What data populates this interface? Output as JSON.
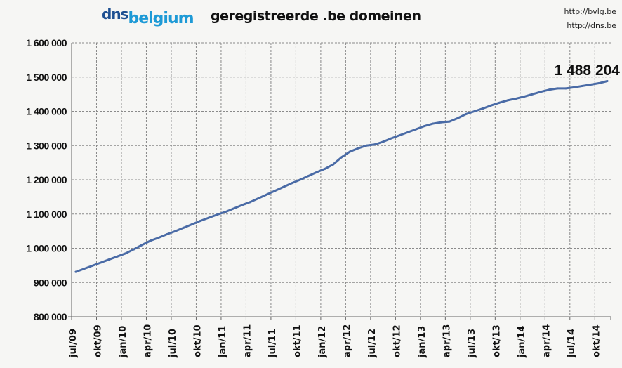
{
  "header": {
    "logo_dns": "dns",
    "logo_belgium": "belgium",
    "title": "geregistreerde .be domeinen",
    "url1": "http://bvlg.be",
    "url2": "http://dns.be"
  },
  "colors": {
    "line": "#4a6ba6",
    "grid": "#888888",
    "logo_dark": "#1d4f91",
    "logo_light": "#1e9ad6"
  },
  "chart_data": {
    "type": "line",
    "title": "geregistreerde .be domeinen",
    "xlabel": "",
    "ylabel": "",
    "ylim": [
      800000,
      1600000
    ],
    "yticks": [
      800000,
      900000,
      1000000,
      1100000,
      1200000,
      1300000,
      1400000,
      1500000,
      1600000
    ],
    "ytick_labels": [
      "800 000",
      "900 000",
      "1 000 000",
      "1 100 000",
      "1 200 000",
      "1 300 000",
      "1 400 000",
      "1 500 000",
      "1 600 000"
    ],
    "xtick_labels": [
      "jul/09",
      "okt/09",
      "jan/10",
      "apr/10",
      "jul/10",
      "okt/10",
      "jan/11",
      "apr/11",
      "jul/11",
      "okt/11",
      "jan/12",
      "apr/12",
      "jul/12",
      "okt/12",
      "jan/13",
      "apr/13",
      "jul/13",
      "okt/13",
      "jan/14",
      "apr/14",
      "jul/14",
      "okt/14"
    ],
    "grid": true,
    "legend": "none",
    "annotation": "1 488 204",
    "x_start": "2009-07",
    "x_end": "2014-11",
    "x_interval": "month",
    "series": [
      {
        "values": [
          931000,
          940000,
          949000,
          958000,
          967000,
          976000,
          985000,
          997000,
          1010000,
          1022000,
          1031000,
          1041000,
          1050000,
          1060000,
          1070000,
          1080000,
          1089000,
          1098000,
          1106000,
          1116000,
          1126000,
          1135000,
          1146000,
          1157000,
          1168000,
          1179000,
          1190000,
          1200000,
          1211000,
          1222000,
          1232000,
          1245000,
          1266000,
          1282000,
          1292000,
          1300000,
          1303000,
          1311000,
          1321000,
          1330000,
          1339000,
          1348000,
          1357000,
          1364000,
          1368000,
          1370000,
          1380000,
          1392000,
          1400000,
          1408000,
          1417000,
          1425000,
          1432000,
          1437000,
          1443000,
          1450000,
          1457000,
          1463000,
          1467000,
          1467000,
          1470000,
          1474000,
          1478000,
          1482000,
          1488204
        ]
      }
    ]
  }
}
